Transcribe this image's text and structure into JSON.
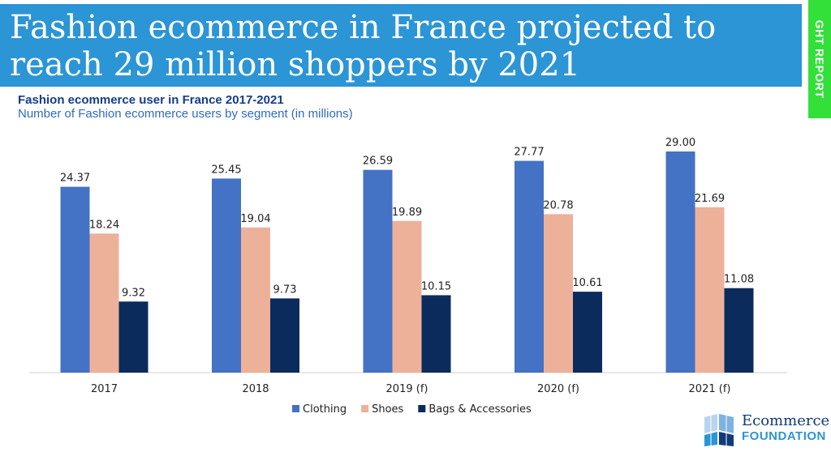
{
  "header": {
    "title": "Fashion ecommerce in France projected to\nreach 29 million shoppers by 2021",
    "side_tab": "GHT REPORT"
  },
  "logo": {
    "line1": "Ecommerce",
    "line2": "FOUNDATION"
  },
  "colors": {
    "banner": "#2b95d6",
    "side_tab": "#33e03a",
    "title_text": "#143c8c",
    "subtitle_text": "#2f6cc0"
  },
  "chart_data": {
    "type": "bar",
    "title": "Fashion ecommerce user in France 2017-2021",
    "subtitle": "Number of Fashion ecommerce users by segment (in millions)",
    "categories": [
      "2017",
      "2018",
      "2019 (f)",
      "2020 (f)",
      "2021 (f)"
    ],
    "series": [
      {
        "name": "Clothing",
        "color": "#4472c4",
        "values": [
          24.37,
          25.45,
          26.59,
          27.77,
          29.0
        ],
        "labels": [
          "24.37",
          "25.45",
          "26.59",
          "27.77",
          "29.00"
        ]
      },
      {
        "name": "Shoes",
        "color": "#edb19a",
        "values": [
          18.24,
          19.04,
          19.89,
          20.78,
          21.69
        ],
        "labels": [
          "18.24",
          "19.04",
          "19.89",
          "20.78",
          "21.69"
        ]
      },
      {
        "name": "Bags & Accessories",
        "color": "#0b2b5c",
        "values": [
          9.32,
          9.73,
          10.15,
          10.61,
          11.08
        ],
        "labels": [
          "9.32",
          "9.73",
          "10.15",
          "10.61",
          "11.08"
        ]
      }
    ],
    "xlabel": "",
    "ylabel": "",
    "ylim": [
      0,
      29
    ],
    "grid": false,
    "legend_position": "bottom"
  }
}
